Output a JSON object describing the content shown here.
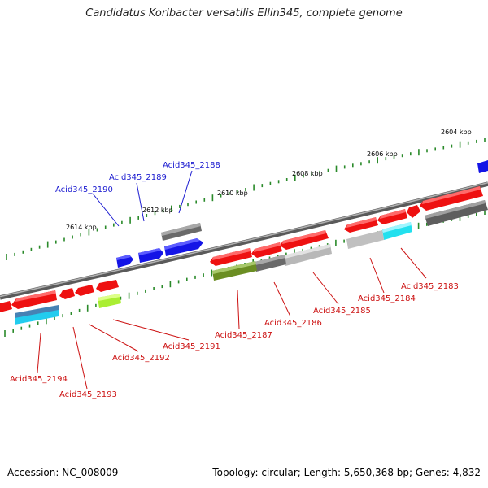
{
  "title": "Candidatus Koribacter versatilis Ellin345, complete genome",
  "footer": {
    "accession": "Accession: NC_008009",
    "summary": "Topology: circular; Length: 5,650,368 bp; Genes: 4,832"
  },
  "scale_labels": [
    "2604 kbp",
    "2606 kbp",
    "2608 kbp",
    "2610 kbp",
    "2612 kbp",
    "2614 kbp"
  ],
  "gene_labels": [
    {
      "name": "Acid345_2188",
      "strand": "forward"
    },
    {
      "name": "Acid345_2189",
      "strand": "forward"
    },
    {
      "name": "Acid345_2190",
      "strand": "forward"
    },
    {
      "name": "Acid345_2183",
      "strand": "reverse"
    },
    {
      "name": "Acid345_2184",
      "strand": "reverse"
    },
    {
      "name": "Acid345_2185",
      "strand": "reverse"
    },
    {
      "name": "Acid345_2186",
      "strand": "reverse"
    },
    {
      "name": "Acid345_2187",
      "strand": "reverse"
    },
    {
      "name": "Acid345_2191",
      "strand": "reverse"
    },
    {
      "name": "Acid345_2192",
      "strand": "reverse"
    },
    {
      "name": "Acid345_2193",
      "strand": "reverse"
    },
    {
      "name": "Acid345_2194",
      "strand": "reverse"
    }
  ],
  "colors": {
    "forward_label": "#1a1ad0",
    "reverse_label": "#cc1111",
    "backbone": "#808080",
    "tick": "#2a8a2a",
    "gene_red": "#ee1111",
    "gene_blue": "#1010e0",
    "gene_gray": "#666666",
    "gene_lightgray": "#bbbbbb",
    "gene_cyan": "#22e0ee",
    "gene_olive": "#6b8e23",
    "gene_lime": "#aaee33",
    "gene_steel": "#4682b4"
  }
}
